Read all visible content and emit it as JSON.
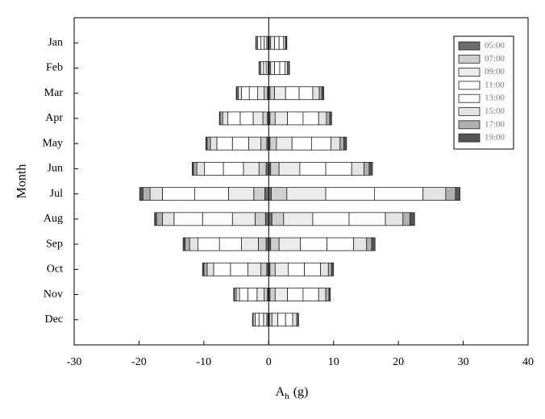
{
  "chart_data": {
    "type": "diverging-stacked-bar",
    "ylabel": "Month",
    "xlabel": {
      "base": "A",
      "sub": "h",
      "unit": "(g)"
    },
    "categories": [
      "Jan",
      "Feb",
      "Mar",
      "Apr",
      "May",
      "Jun",
      "Jul",
      "Aug",
      "Sep",
      "Oct",
      "Nov",
      "Dec"
    ],
    "xlim": [
      -30,
      40
    ],
    "xticks": [
      -30,
      -20,
      -10,
      0,
      10,
      20,
      30,
      40
    ],
    "legend_position": "upper right",
    "series": [
      {
        "name": "05:00",
        "color": "#6e6e6e",
        "negative_values": [
          -0.1,
          0,
          -0.2,
          -0.2,
          -0.3,
          -0.4,
          -0.6,
          -0.5,
          -0.4,
          -0.3,
          -0.2,
          -0.1
        ],
        "values": [
          0.1,
          0.1,
          0.2,
          0.2,
          0.2,
          0.3,
          0.4,
          0.5,
          0.3,
          0.2,
          0.2,
          0.1
        ]
      },
      {
        "name": "07:00",
        "color": "#cfcfcf",
        "negative_values": [
          -0.2,
          -0.1,
          -0.5,
          -0.7,
          -0.9,
          -1.1,
          -1.7,
          -1.6,
          -1.2,
          -0.9,
          -0.5,
          -0.2
        ],
        "values": [
          0.2,
          0.2,
          0.7,
          0.8,
          1.0,
          1.3,
          2.4,
          1.8,
          1.3,
          0.8,
          0.8,
          0.4
        ]
      },
      {
        "name": "09:00",
        "color": "#ececec",
        "negative_values": [
          -0.4,
          -0.3,
          -1.0,
          -1.5,
          -1.9,
          -2.4,
          -3.9,
          -3.5,
          -2.6,
          -2.0,
          -1.1,
          -0.5
        ],
        "values": [
          0.6,
          0.6,
          1.7,
          1.9,
          2.4,
          3.2,
          6.0,
          4.5,
          3.3,
          2.0,
          1.9,
          0.9
        ]
      },
      {
        "name": "11:00",
        "color": "#ffffff",
        "negative_values": [
          -0.5,
          -0.4,
          -1.3,
          -2.0,
          -2.5,
          -3.1,
          -5.2,
          -4.6,
          -3.4,
          -2.7,
          -1.4,
          -0.7
        ],
        "values": [
          0.7,
          0.8,
          2.1,
          2.4,
          3.0,
          4.0,
          7.5,
          5.6,
          4.1,
          2.5,
          2.4,
          1.2
        ]
      },
      {
        "name": "13:00",
        "color": "#ffffff",
        "negative_values": [
          -0.5,
          -0.4,
          -1.2,
          -1.9,
          -2.4,
          -2.9,
          -5.0,
          -4.4,
          -3.3,
          -2.6,
          -1.3,
          -0.6
        ],
        "values": [
          0.7,
          0.8,
          2.1,
          2.4,
          3.0,
          4.0,
          7.5,
          5.6,
          4.1,
          2.5,
          2.4,
          1.1
        ]
      },
      {
        "name": "15:00",
        "color": "#e4e4e4",
        "negative_values": [
          -0.2,
          -0.2,
          -0.5,
          -0.8,
          -1.0,
          -1.2,
          -1.9,
          -1.8,
          -1.3,
          -1.0,
          -0.5,
          -0.3
        ],
        "values": [
          0.3,
          0.4,
          1.0,
          1.2,
          1.4,
          1.9,
          3.5,
          2.7,
          2.0,
          1.2,
          1.1,
          0.6
        ]
      },
      {
        "name": "17:00",
        "color": "#b0b0b0",
        "negative_values": [
          -0.1,
          -0.1,
          -0.2,
          -0.4,
          -0.5,
          -0.5,
          -1.1,
          -0.9,
          -0.7,
          -0.5,
          -0.3,
          -0.1
        ],
        "values": [
          0.1,
          0.2,
          0.4,
          0.5,
          0.6,
          0.8,
          1.5,
          1.1,
          0.8,
          0.5,
          0.5,
          0.2
        ]
      },
      {
        "name": "19:00",
        "color": "#555555",
        "negative_values": [
          0,
          0,
          -0.1,
          -0.1,
          -0.2,
          -0.2,
          -0.5,
          -0.3,
          -0.3,
          -0.2,
          -0.1,
          0
        ],
        "values": [
          0.1,
          0.1,
          0.3,
          0.3,
          0.4,
          0.5,
          0.7,
          0.7,
          0.5,
          0.3,
          0.2,
          0.1
        ]
      }
    ]
  }
}
